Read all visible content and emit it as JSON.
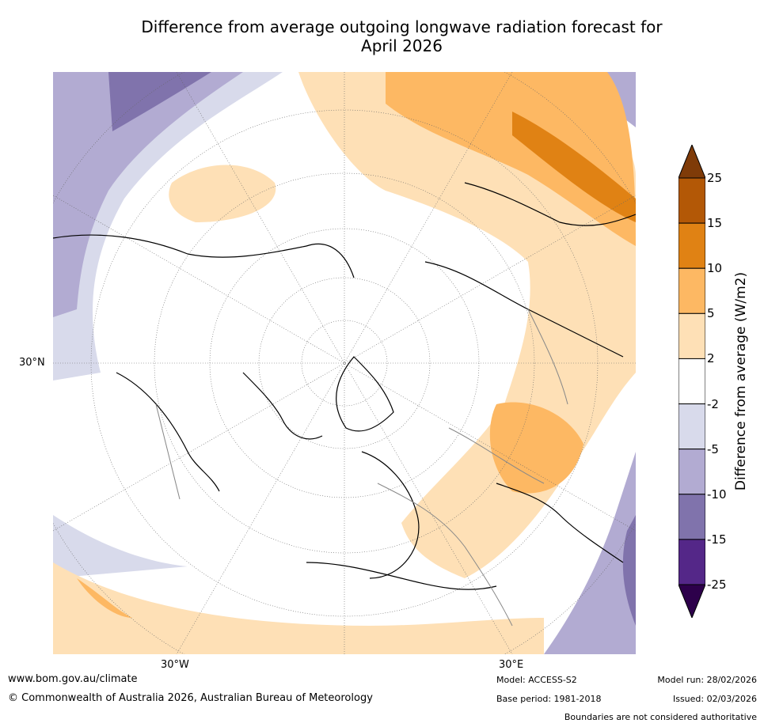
{
  "title_line1": "Difference from average outgoing longwave radiation forecast for",
  "title_line2": "April 2026",
  "axis_labels": {
    "lat_30n": "30°N",
    "lon_30w": "30°W",
    "lon_30e": "30°E"
  },
  "colorbar": {
    "label": "Difference from average (W/m2)",
    "ticks": [
      "25",
      "15",
      "10",
      "5",
      "2",
      "-2",
      "-5",
      "-10",
      "-15",
      "-25"
    ],
    "colors": [
      "#7f3b08",
      "#b35806",
      "#e08214",
      "#fdb863",
      "#fee0b6",
      "#ffffff",
      "#d8daeb",
      "#b2abd2",
      "#8073ac",
      "#542788",
      "#2d004b"
    ]
  },
  "footer": {
    "website": "www.bom.gov.au/climate",
    "copyright": "© Commonwealth of Australia 2026, Australian Bureau of Meteorology",
    "model": "Model: ACCESS-S2",
    "base_period": "Base period: 1981-2018",
    "model_run": "Model run: 28/02/2026",
    "issued": "Issued: 02/03/2026",
    "disclaimer": "Boundaries are not considered authoritative"
  }
}
